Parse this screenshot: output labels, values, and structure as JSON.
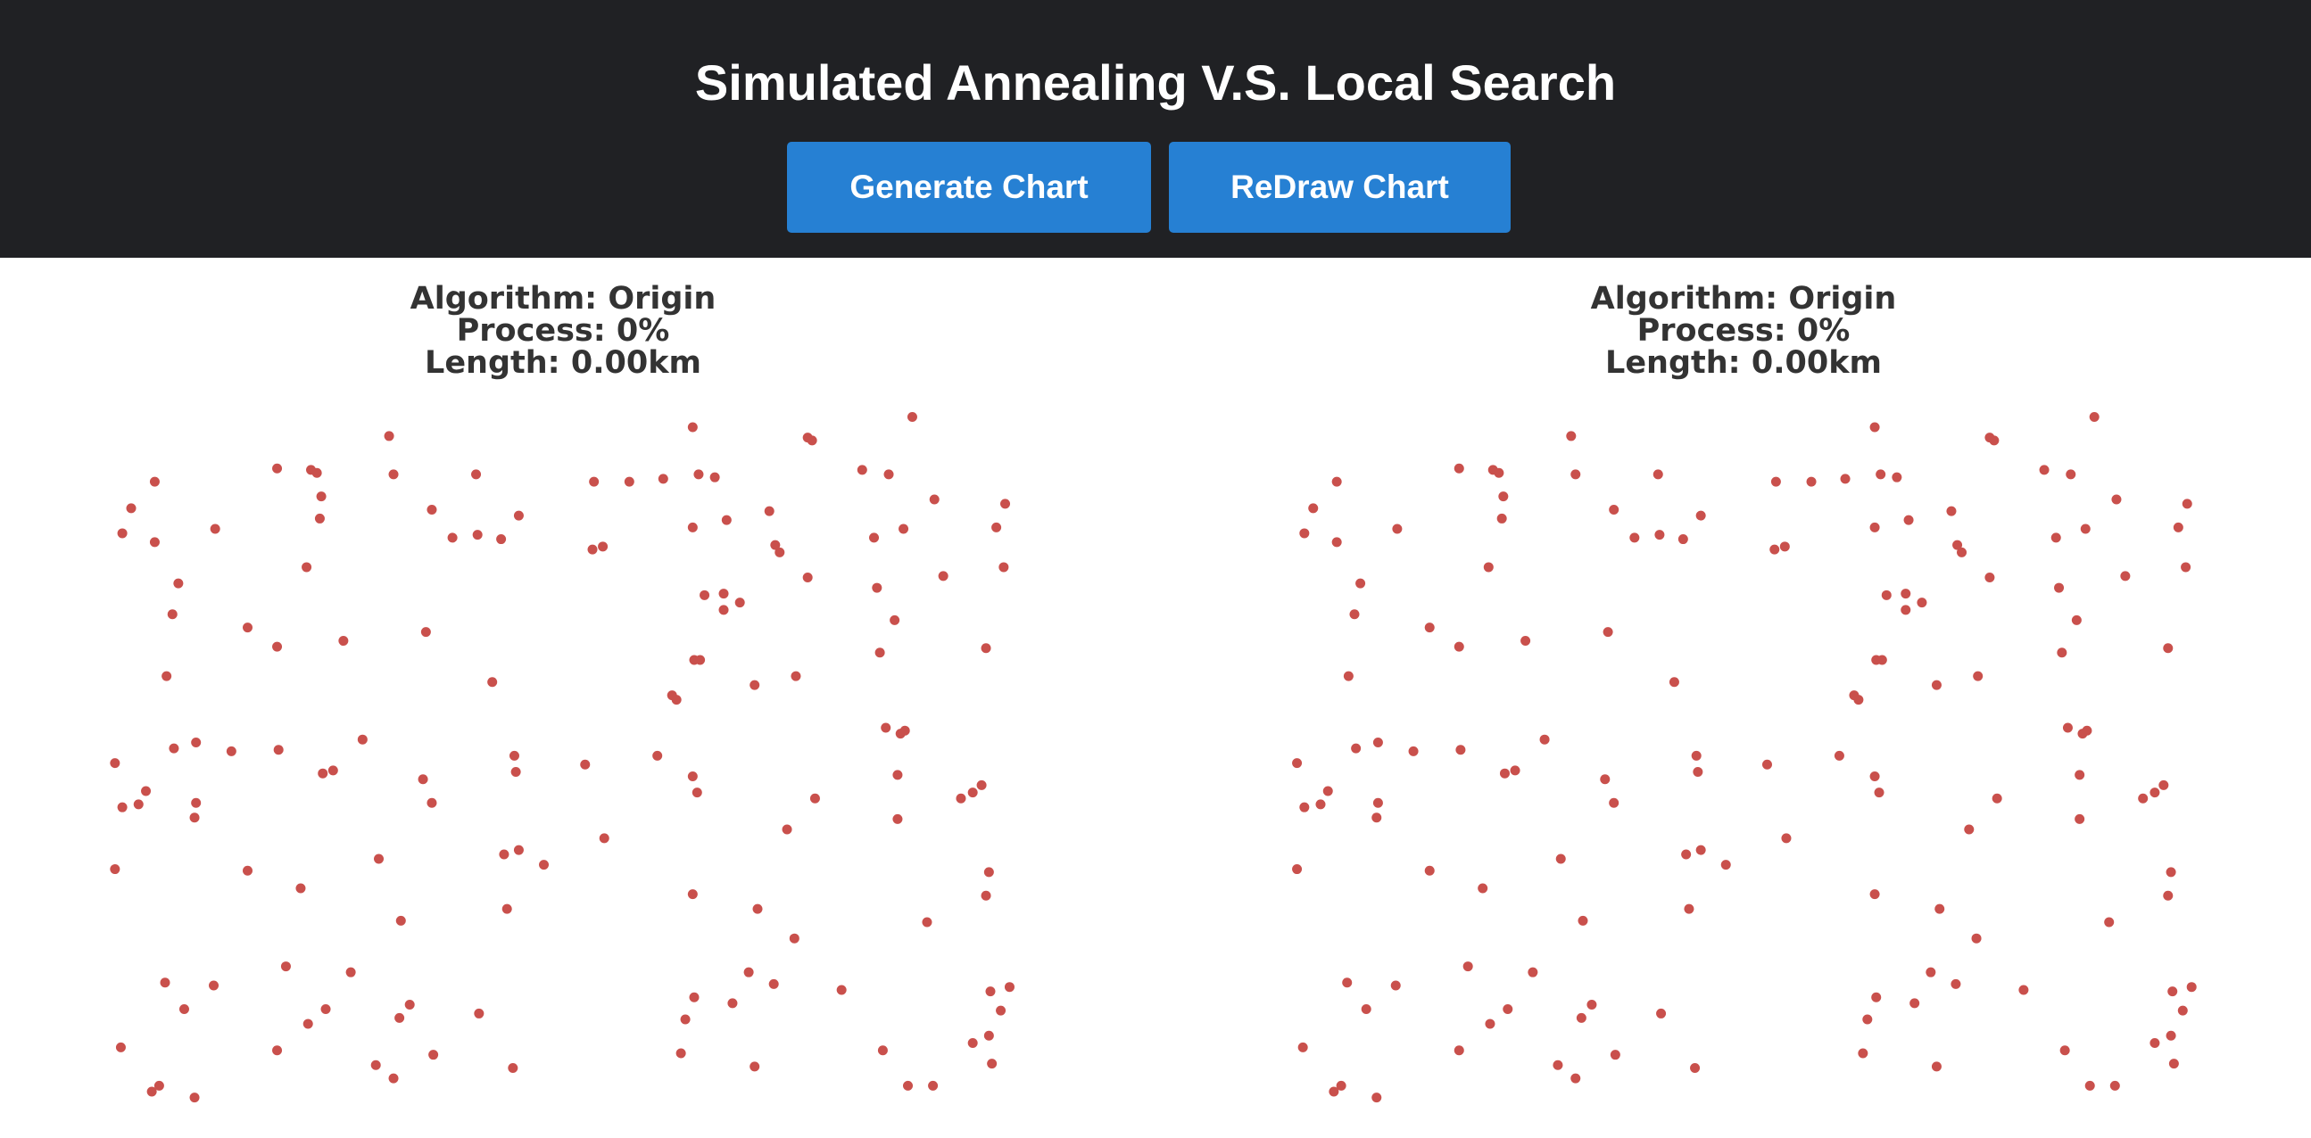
{
  "header": {
    "title": "Simulated Annealing V.S. Local Search",
    "buttons": [
      "Generate Chart",
      "ReDraw Chart"
    ]
  },
  "panels": [
    {
      "lines": [
        "Algorithm: Origin",
        "Process: 0%",
        "Length: 0.00km"
      ]
    },
    {
      "lines": [
        "Algorithm: Origin",
        "Process: 0%",
        "Length: 0.00km"
      ]
    }
  ],
  "cities": {
    "x": [
      264,
      188,
      211,
      215,
      105,
      267,
      323,
      470,
      619,
      548,
      551,
      403,
      427,
      450,
      474,
      485,
      585,
      603,
      89,
      218,
      293,
      352,
      634,
      682,
      83,
      105,
      146,
      217,
      307,
      324,
      340,
      402,
      409,
      470,
      493,
      522,
      526,
      529,
      593,
      613,
      676,
      208,
      121,
      548,
      640,
      681,
      478,
      491,
      491,
      502,
      595,
      117,
      168,
      188,
      233,
      289,
      607,
      669,
      113,
      334,
      471,
      475,
      512,
      540,
      597,
      456,
      459,
      601,
      611,
      614,
      78,
      118,
      133,
      157,
      189,
      246,
      219,
      226,
      287,
      349,
      350,
      397,
      446,
      470,
      473,
      609,
      83,
      94,
      99,
      133,
      132,
      293,
      553,
      652,
      660,
      666,
      609,
      534,
      410,
      78,
      168,
      204,
      257,
      342,
      352,
      369,
      470,
      671,
      669,
      344,
      272,
      514,
      629,
      539,
      194,
      112,
      145,
      238,
      125,
      221,
      209,
      271,
      278,
      325,
      471,
      465,
      497,
      508,
      525,
      571,
      685,
      672,
      679,
      671,
      660,
      82,
      188,
      255,
      267,
      294,
      348,
      462,
      512,
      599,
      673,
      103,
      108,
      132,
      616,
      633
    ],
    "y": [
      296,
      318,
      319,
      321,
      327,
      322,
      322,
      290,
      283,
      297,
      299,
      327,
      327,
      325,
      322,
      324,
      319,
      322,
      345,
      337,
      346,
      350,
      339,
      342,
      362,
      368,
      359,
      352,
      365,
      363,
      366,
      373,
      371,
      358,
      353,
      347,
      370,
      375,
      365,
      359,
      358,
      385,
      396,
      392,
      391,
      385,
      404,
      403,
      414,
      409,
      399,
      417,
      426,
      439,
      435,
      429,
      421,
      440,
      459,
      463,
      448,
      448,
      465,
      459,
      443,
      472,
      475,
      494,
      498,
      496,
      518,
      508,
      504,
      510,
      509,
      502,
      525,
      523,
      529,
      513,
      524,
      519,
      513,
      527,
      538,
      526,
      548,
      546,
      537,
      545,
      555,
      545,
      542,
      542,
      538,
      533,
      556,
      563,
      569,
      590,
      591,
      603,
      583,
      580,
      577,
      587,
      607,
      592,
      608,
      617,
      625,
      617,
      626,
      637,
      656,
      667,
      669,
      660,
      685,
      685,
      695,
      691,
      682,
      688,
      677,
      692,
      681,
      660,
      668,
      672,
      670,
      673,
      686,
      703,
      708,
      711,
      713,
      723,
      732,
      716,
      725,
      715,
      724,
      713,
      722,
      741,
      737,
      745,
      737,
      737
    ]
  }
}
